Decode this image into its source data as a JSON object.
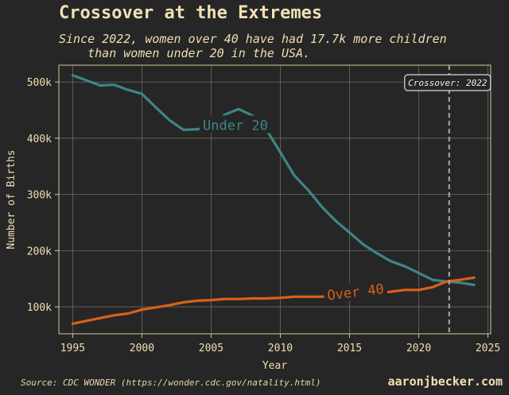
{
  "header": {
    "title": "Crossover at the Extremes",
    "subtitle": "Since 2022, women over 40 have had 17.7k more children\n    than women under 20 in the USA."
  },
  "footer": {
    "source": "Source: CDC WONDER (https://wonder.cdc.gov/natality.html)",
    "brand": "aaronjbecker.com"
  },
  "colors": {
    "background": "#262626",
    "under20": "#3f8587",
    "over40": "#d8611b",
    "text": "#f0dfb4",
    "grid": "#6e6a5e",
    "crossover_line": "#a8a8a8"
  },
  "chart_data": {
    "type": "line",
    "title": "Crossover at the Extremes",
    "xlabel": "Year",
    "ylabel": "Number of Births",
    "xlim": [
      1994,
      2025.2
    ],
    "ylim": [
      52000,
      530000
    ],
    "x_ticks": [
      1995,
      2000,
      2005,
      2010,
      2015,
      2020,
      2025
    ],
    "x_tick_labels": [
      "1995",
      "2000",
      "2005",
      "2010",
      "2015",
      "2020",
      "2025"
    ],
    "y_ticks": [
      100000,
      200000,
      300000,
      400000,
      500000
    ],
    "y_tick_labels": [
      "100k",
      "200k",
      "300k",
      "400k",
      "500k"
    ],
    "grid": true,
    "x": [
      1995,
      1996,
      1997,
      1998,
      1999,
      2000,
      2001,
      2002,
      2003,
      2004,
      2005,
      2006,
      2007,
      2008,
      2009,
      2010,
      2011,
      2012,
      2013,
      2014,
      2015,
      2016,
      2017,
      2018,
      2019,
      2020,
      2021,
      2022,
      2023,
      2024
    ],
    "series": [
      {
        "name": "Under 20",
        "color": "#3f8587",
        "values": [
          512000,
          503000,
          494000,
          495000,
          486000,
          479000,
          455000,
          432000,
          415000,
          416000,
          420000,
          442000,
          452000,
          440000,
          415000,
          375000,
          334000,
          308000,
          278000,
          253000,
          232000,
          211000,
          195000,
          181000,
          172000,
          160000,
          148000,
          145000,
          143000,
          139000
        ]
      },
      {
        "name": "Over 40",
        "color": "#d8611b",
        "values": [
          70000,
          75000,
          80000,
          85000,
          88000,
          95000,
          99000,
          103000,
          108000,
          111000,
          112000,
          114000,
          114000,
          115000,
          115000,
          116000,
          118000,
          118000,
          118000,
          120000,
          122000,
          122000,
          124000,
          127000,
          130000,
          130000,
          135000,
          145000,
          148000,
          152000
        ]
      }
    ],
    "annotations": [
      {
        "type": "vline",
        "x": 2022.2,
        "label": "Crossover: 2022"
      },
      {
        "type": "series_label",
        "series": "Under 20",
        "x": 2004.4,
        "y": 422000
      },
      {
        "type": "series_label",
        "series": "Over 40",
        "x": 2013.4,
        "y": 119000
      }
    ]
  }
}
